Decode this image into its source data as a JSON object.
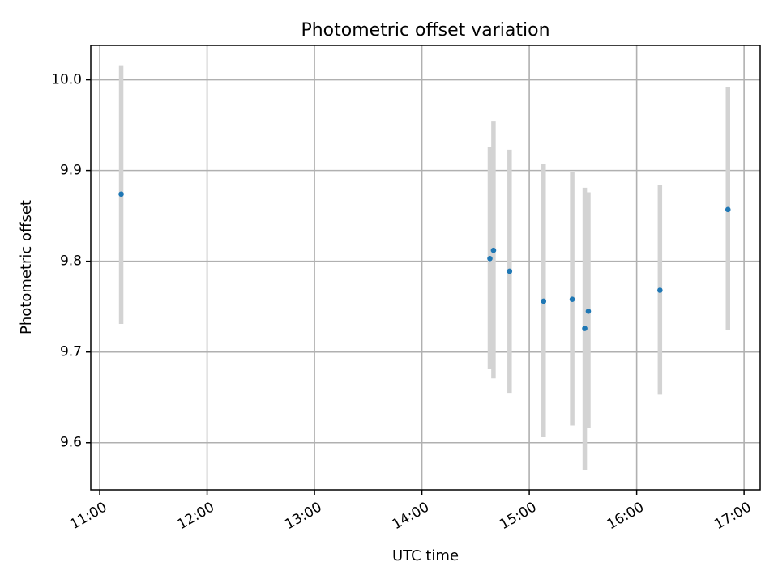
{
  "chart_data": {
    "type": "scatter",
    "title": "Photometric offset variation",
    "xlabel": "UTC time",
    "ylabel": "Photometric offset",
    "x_tick_labels": [
      "11:00",
      "12:00",
      "13:00",
      "14:00",
      "15:00",
      "16:00",
      "17:00"
    ],
    "y_tick_labels": [
      "9.6",
      "9.7",
      "9.8",
      "9.9",
      "10.0"
    ],
    "xlim": [
      "10:55",
      "17:09"
    ],
    "ylim": [
      9.548,
      10.038
    ],
    "grid": true,
    "colors": {
      "points": "#1f77b4",
      "errorbars": "#d3d3d3"
    },
    "points": [
      {
        "x": "11:12",
        "y": 9.874,
        "yerr_low": 9.731,
        "yerr_high": 10.016
      },
      {
        "x": "14:38",
        "y": 9.803,
        "yerr_low": 9.681,
        "yerr_high": 9.926
      },
      {
        "x": "14:40",
        "y": 9.812,
        "yerr_low": 9.671,
        "yerr_high": 9.954
      },
      {
        "x": "14:49",
        "y": 9.789,
        "yerr_low": 9.655,
        "yerr_high": 9.923
      },
      {
        "x": "15:08",
        "y": 9.756,
        "yerr_low": 9.606,
        "yerr_high": 9.907
      },
      {
        "x": "15:24",
        "y": 9.758,
        "yerr_low": 9.619,
        "yerr_high": 9.898
      },
      {
        "x": "15:31",
        "y": 9.726,
        "yerr_low": 9.57,
        "yerr_high": 9.881
      },
      {
        "x": "15:33",
        "y": 9.745,
        "yerr_low": 9.616,
        "yerr_high": 9.876
      },
      {
        "x": "16:13",
        "y": 9.768,
        "yerr_low": 9.653,
        "yerr_high": 9.884
      },
      {
        "x": "16:51",
        "y": 9.857,
        "yerr_low": 9.724,
        "yerr_high": 9.992
      }
    ]
  }
}
